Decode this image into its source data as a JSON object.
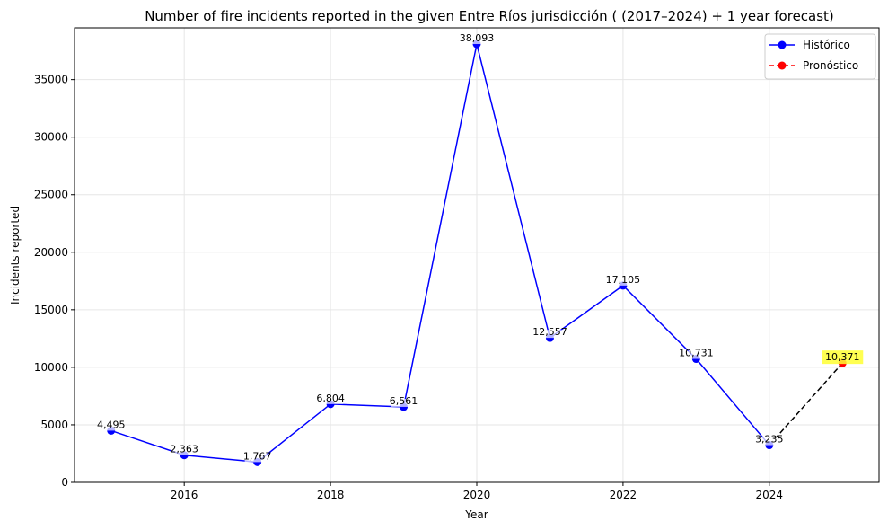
{
  "chart_data": {
    "type": "line",
    "title": "Number of fire incidents reported in the given Entre Ríos jurisdicción  ( (2017–2024)  + 1 year forecast)",
    "xlabel": "Year",
    "ylabel": "Incidents reported",
    "xlim": [
      2014.5,
      2025.5
    ],
    "ylim": [
      0,
      39500
    ],
    "xticks": [
      2016,
      2018,
      2020,
      2022,
      2024
    ],
    "yticks": [
      0,
      5000,
      10000,
      15000,
      20000,
      25000,
      30000,
      35000
    ],
    "grid": true,
    "legend_position": "top-right",
    "series": [
      {
        "name": "Histórico",
        "color": "#0000ff",
        "style": "solid",
        "x": [
          2015,
          2016,
          2017,
          2018,
          2019,
          2020,
          2021,
          2022,
          2023,
          2024
        ],
        "y": [
          4495,
          2363,
          1767,
          6804,
          6561,
          38093,
          12557,
          17105,
          10731,
          3235
        ],
        "labels": [
          "4,495",
          "2,363",
          "1,767",
          "6,804",
          "6,561",
          "38,093",
          "12,557",
          "17,105",
          "10,731",
          "3,235"
        ]
      },
      {
        "name": "Pronóstico",
        "color": "#ff0000",
        "style": "dashed",
        "connector_color": "#000000",
        "x": [
          2025
        ],
        "y": [
          10371
        ],
        "labels": [
          "10,371"
        ],
        "label_highlight": "#ffff33"
      }
    ]
  }
}
